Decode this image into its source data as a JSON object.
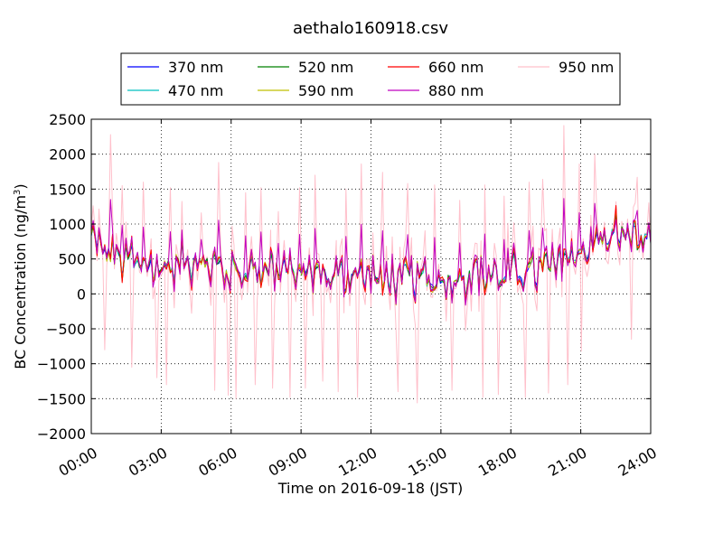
{
  "chart_data": {
    "type": "line",
    "title": "aethalo160918.csv",
    "xlabel": "Time on 2016-09-18 (JST)",
    "ylabel_main": "BC Concentration (ng/m",
    "ylabel_sup": "3",
    "ylabel_end": ")",
    "xlim": [
      0,
      24
    ],
    "ylim": [
      -2000,
      2500
    ],
    "x_ticks": [
      0,
      3,
      6,
      9,
      12,
      15,
      18,
      21,
      24
    ],
    "x_tick_labels": [
      "00:00",
      "03:00",
      "06:00",
      "09:00",
      "12:00",
      "15:00",
      "18:00",
      "21:00",
      "24:00"
    ],
    "y_ticks": [
      -2000,
      -1500,
      -1000,
      -500,
      0,
      500,
      1000,
      1500,
      2000,
      2500
    ],
    "y_tick_labels": [
      "−2000",
      "−1500",
      "−1000",
      "−500",
      "0",
      "500",
      "1000",
      "1500",
      "2000",
      "2500"
    ],
    "grid": true,
    "legend_position": "top",
    "series": [
      {
        "name": "370 nm",
        "color": "#0000ff"
      },
      {
        "name": "470 nm",
        "color": "#00bfbf"
      },
      {
        "name": "520 nm",
        "color": "#008000"
      },
      {
        "name": "590 nm",
        "color": "#bfbf00"
      },
      {
        "name": "660 nm",
        "color": "#ff0000"
      },
      {
        "name": "880 nm",
        "color": "#bf00bf"
      },
      {
        "name": "950 nm",
        "color": "#ffc0cb"
      }
    ],
    "base_profile": {
      "x": [
        0,
        0.5,
        1,
        1.5,
        2,
        2.5,
        3,
        3.5,
        4,
        4.5,
        5,
        5.5,
        6,
        6.5,
        7,
        7.5,
        8,
        8.5,
        9,
        9.5,
        10,
        10.5,
        11,
        11.5,
        12,
        12.5,
        13,
        13.5,
        14,
        14.5,
        15,
        15.5,
        16,
        16.5,
        17,
        17.5,
        18,
        18.5,
        19,
        19.5,
        20,
        20.5,
        21,
        21.5,
        22,
        22.5,
        23,
        23.5,
        24
      ],
      "y": [
        800,
        650,
        550,
        500,
        450,
        400,
        350,
        380,
        450,
        500,
        420,
        380,
        300,
        320,
        350,
        380,
        350,
        320,
        300,
        320,
        280,
        250,
        270,
        300,
        250,
        220,
        200,
        250,
        250,
        200,
        180,
        200,
        250,
        300,
        280,
        250,
        300,
        320,
        350,
        380,
        450,
        550,
        600,
        700,
        800,
        850,
        820,
        800,
        780
      ]
    },
    "peaks": {
      "x": [
        0.8,
        1.3,
        2.2,
        3.4,
        4.7,
        5.5,
        6.6,
        7.3,
        8.0,
        8.9,
        9.6,
        10.9,
        11.6,
        12.5,
        13.6,
        14.7,
        15.8,
        16.9,
        17.7,
        18.8,
        19.4,
        20.3,
        20.9,
        21.6,
        22.5,
        23.4
      ],
      "y": [
        2280,
        1550,
        1600,
        1520,
        1160,
        1880,
        1450,
        1520,
        1180,
        1520,
        1700,
        1500,
        1860,
        1740,
        1580,
        1560,
        1340,
        1560,
        1400,
        1600,
        1640,
        2410,
        1860,
        2000,
        1320,
        1670
      ]
    },
    "troughs": {
      "x": [
        0.6,
        1.7,
        2.8,
        3.2,
        5.3,
        5.9,
        6.2,
        7.0,
        7.8,
        8.5,
        9.2,
        9.9,
        10.6,
        11.4,
        13.2,
        14.0,
        15.5,
        16.8,
        17.5,
        18.6,
        19.6,
        20.4,
        21.0,
        23.2
      ],
      "y": [
        -800,
        -1050,
        -1200,
        -1300,
        -1380,
        -1450,
        -1500,
        -1300,
        -1350,
        -1480,
        -1350,
        -1250,
        -1400,
        -1480,
        -1400,
        -1560,
        -1380,
        -1480,
        -1440,
        -1480,
        -1420,
        -1300,
        -820,
        -650
      ]
    }
  }
}
